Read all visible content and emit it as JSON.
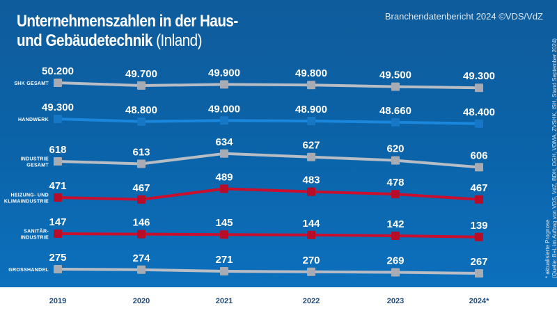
{
  "header": {
    "title_bold_line1": "Unternehmenszahlen in der Haus-",
    "title_bold_line2": "und Gebäudetechnik",
    "title_light": "(Inland)",
    "source_top": "Branchendatenbericht 2024 ©VDS/VdZ"
  },
  "footnote": {
    "line1": "* aktualisierte Prognose",
    "line2": "(Quelle: B+L im Auftrag von VDS, VdZ, BDH, DGH, VDMA, ZVSHK, ISH, Stand September 2024)"
  },
  "chart_data": {
    "type": "line",
    "title": "Unternehmenszahlen in der Haus- und Gebäudetechnik (Inland)",
    "xlabel": "",
    "ylabel": "",
    "grid": false,
    "legend": "inline-left",
    "categories": [
      "2019",
      "2020",
      "2021",
      "2022",
      "2023",
      "2024*"
    ],
    "series": [
      {
        "name": "SHK GESAMT",
        "label_lines": [
          "SHK GESAMT"
        ],
        "color": "#b8bcc4",
        "values": [
          50200,
          49700,
          49900,
          49800,
          49500,
          49300
        ],
        "labels": [
          "50.200",
          "49.700",
          "49.900",
          "49.800",
          "49.500",
          "49.300"
        ]
      },
      {
        "name": "HANDWERK",
        "label_lines": [
          "HANDWERK"
        ],
        "color": "#1a87dd",
        "values": [
          49300,
          48800,
          49000,
          48900,
          48660,
          48400
        ],
        "labels": [
          "49.300",
          "48.800",
          "49.000",
          "48.900",
          "48.660",
          "48.400"
        ]
      },
      {
        "name": "INDUSTRIE GESAMT",
        "label_lines": [
          "INDUSTRIE",
          "GESAMT"
        ],
        "color": "#b8bcc4",
        "values": [
          618,
          613,
          634,
          627,
          620,
          606
        ],
        "labels": [
          "618",
          "613",
          "634",
          "627",
          "620",
          "606"
        ]
      },
      {
        "name": "HEIZUNG- UND KLIMAINDUSTRIE",
        "label_lines": [
          "HEIZUNG- UND",
          "KLIMAINDUSTRIE"
        ],
        "color": "#c8102e",
        "values": [
          471,
          467,
          489,
          483,
          478,
          467
        ],
        "labels": [
          "471",
          "467",
          "489",
          "483",
          "478",
          "467"
        ]
      },
      {
        "name": "SANITÄR-INDUSTRIE",
        "label_lines": [
          "SANITÄR-",
          "INDUSTRIE"
        ],
        "color": "#c8102e",
        "values": [
          147,
          146,
          145,
          144,
          142,
          139
        ],
        "labels": [
          "147",
          "146",
          "145",
          "144",
          "142",
          "139"
        ]
      },
      {
        "name": "GROSSHANDEL",
        "label_lines": [
          "GROSSHANDEL"
        ],
        "color": "#b8bcc4",
        "values": [
          275,
          274,
          271,
          270,
          269,
          267
        ],
        "labels": [
          "275",
          "274",
          "271",
          "270",
          "269",
          "267"
        ]
      }
    ]
  }
}
